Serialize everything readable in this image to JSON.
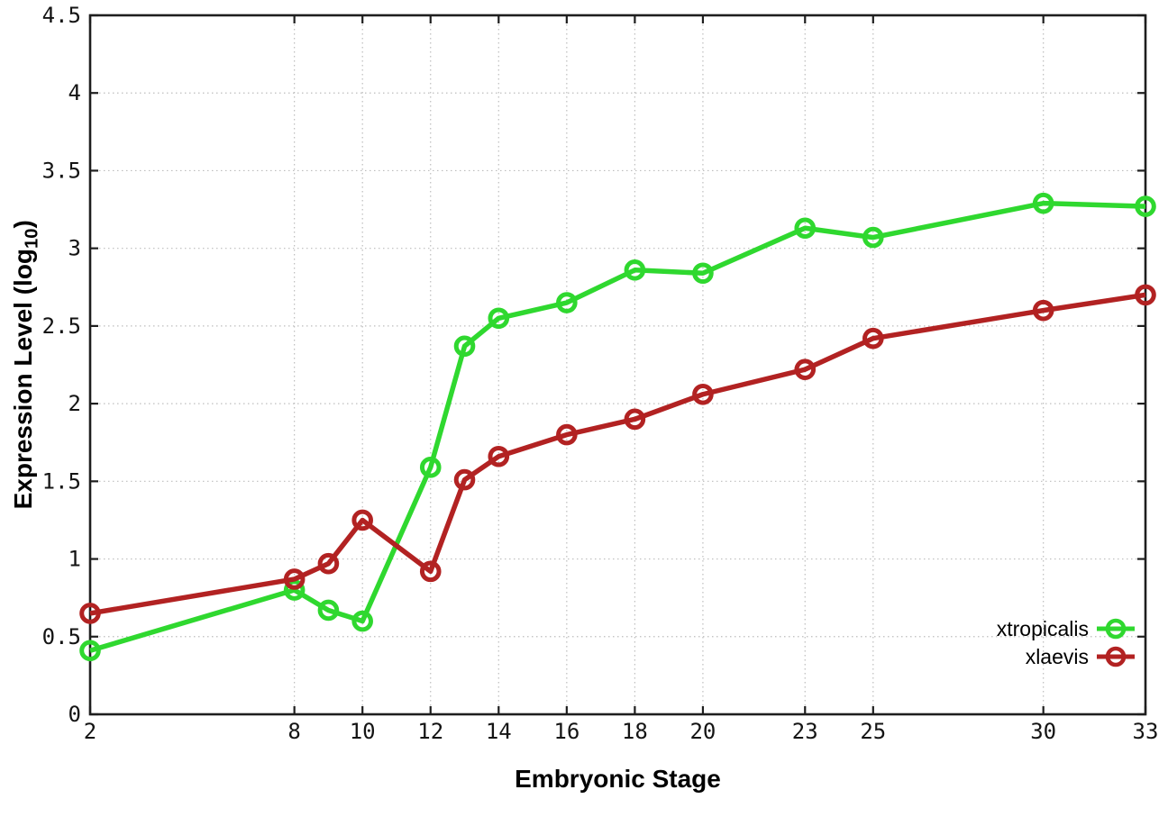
{
  "chart_data": {
    "type": "line",
    "title": "",
    "xlabel": "Embryonic Stage",
    "ylabel": "Expression Level (log10)",
    "ylabel_parts": {
      "main": "Expression Level (log",
      "sub": "10",
      "end": ")"
    },
    "xlim": [
      2,
      33
    ],
    "ylim": [
      0,
      4.5
    ],
    "grid": true,
    "legend_position": "inside-bottom-right",
    "x_ticks": [
      2,
      8,
      10,
      12,
      14,
      16,
      18,
      20,
      23,
      25,
      30,
      33
    ],
    "x_ticklabels": [
      "2",
      "8",
      "10",
      "12",
      "14",
      "16",
      "18",
      "20",
      "23",
      "25",
      "30",
      "33"
    ],
    "y_ticks": [
      0,
      0.5,
      1,
      1.5,
      2,
      2.5,
      3,
      3.5,
      4,
      4.5
    ],
    "y_ticklabels": [
      "0",
      "0.5",
      "1",
      "1.5",
      "2",
      "2.5",
      "3",
      "3.5",
      "4",
      "4.5"
    ],
    "x": [
      2,
      8,
      9,
      10,
      12,
      13,
      14,
      16,
      18,
      20,
      23,
      25,
      30,
      33
    ],
    "series": [
      {
        "name": "xtropicalis",
        "color": "#2fd82f",
        "marker": "open-circle",
        "values": [
          0.41,
          0.8,
          0.67,
          0.6,
          1.59,
          2.37,
          2.55,
          2.65,
          2.86,
          2.84,
          3.13,
          3.07,
          3.29,
          3.27
        ]
      },
      {
        "name": "xlaevis",
        "color": "#b22222",
        "marker": "open-circle",
        "values": [
          0.65,
          0.87,
          0.97,
          1.25,
          0.92,
          1.51,
          1.66,
          1.8,
          1.9,
          2.06,
          2.22,
          2.42,
          2.6,
          2.7
        ]
      }
    ]
  },
  "style_colors": {
    "axis": "#1e1e1e",
    "grid": "#bdbdbd",
    "text": "#000000",
    "background": "#ffffff"
  }
}
